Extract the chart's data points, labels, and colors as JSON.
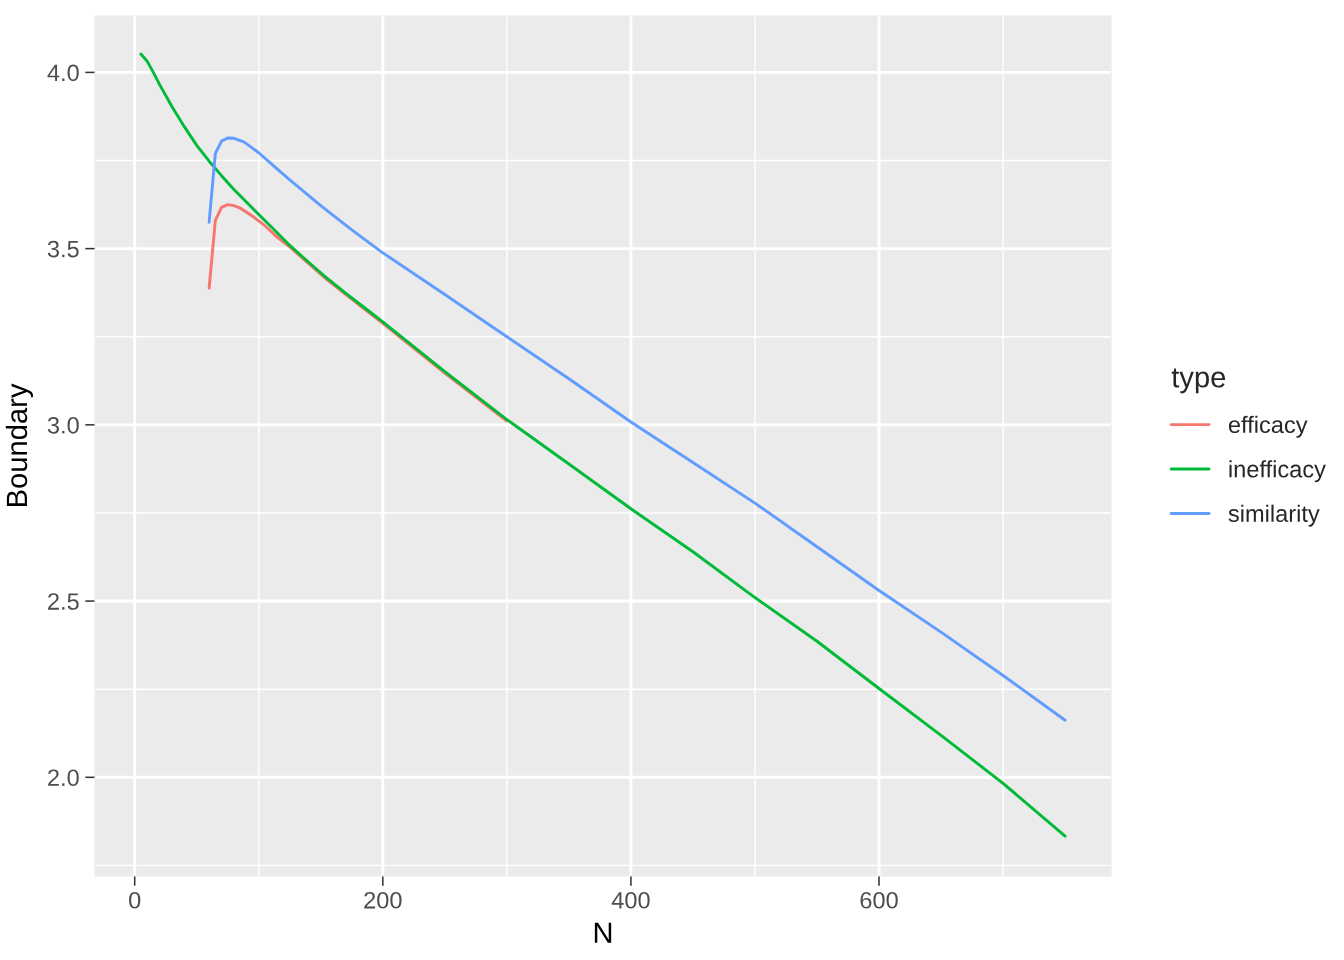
{
  "chart_data": {
    "type": "line",
    "xlabel": "N",
    "ylabel": "Boundary",
    "legend_title": "type",
    "legend": "right",
    "grid": true,
    "line_style": "solid",
    "xlim": [
      -32,
      787
    ],
    "ylim": [
      1.72,
      4.16
    ],
    "xticks": [
      0,
      200,
      400,
      600
    ],
    "yticks": [
      {
        "value": 2,
        "label": "2.0"
      },
      {
        "value": 2.5,
        "label": "2.5"
      },
      {
        "value": 3,
        "label": "3.0"
      },
      {
        "value": 3.5,
        "label": "3.5"
      },
      {
        "value": 4,
        "label": "4.0"
      }
    ],
    "series": [
      {
        "name": "efficacy",
        "color": "#f8766d",
        "x": [
          60,
          65,
          70,
          75,
          80,
          85,
          95,
          105,
          115,
          125,
          140,
          155,
          170,
          185,
          200,
          250,
          300
        ],
        "values": [
          3.388,
          3.58,
          3.617,
          3.625,
          3.622,
          3.615,
          3.592,
          3.565,
          3.532,
          3.505,
          3.458,
          3.412,
          3.37,
          3.329,
          3.288,
          3.147,
          3.011
        ]
      },
      {
        "name": "inefficacy",
        "color": "#00ba38",
        "x": [
          5,
          10,
          15,
          20,
          30,
          40,
          50,
          60,
          70,
          80,
          90,
          100,
          110,
          125,
          140,
          155,
          170,
          185,
          200,
          250,
          300,
          350,
          400,
          450,
          500,
          550,
          600,
          650,
          700,
          750
        ],
        "values": [
          4.052,
          4.032,
          4.0,
          3.966,
          3.903,
          3.846,
          3.793,
          3.748,
          3.707,
          3.668,
          3.632,
          3.597,
          3.562,
          3.509,
          3.462,
          3.416,
          3.374,
          3.333,
          3.292,
          3.151,
          3.015,
          2.889,
          2.762,
          2.64,
          2.51,
          2.386,
          2.252,
          2.119,
          1.983,
          1.833
        ]
      },
      {
        "name": "similarity",
        "color": "#619cff",
        "x": [
          60,
          65,
          70,
          75,
          80,
          88,
          100,
          112,
          125,
          150,
          175,
          200,
          250,
          300,
          350,
          400,
          450,
          500,
          550,
          600,
          650,
          700,
          750
        ],
        "values": [
          3.575,
          3.77,
          3.805,
          3.814,
          3.813,
          3.803,
          3.772,
          3.735,
          3.695,
          3.622,
          3.553,
          3.488,
          3.37,
          3.25,
          3.131,
          3.008,
          2.893,
          2.778,
          2.654,
          2.53,
          2.412,
          2.289,
          2.162
        ]
      }
    ]
  }
}
